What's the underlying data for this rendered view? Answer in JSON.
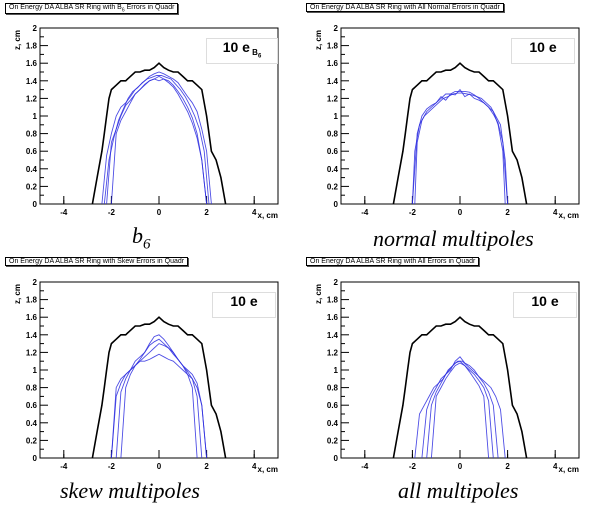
{
  "charts": [
    {
      "title": "On Energy DA ALBA SR Ring with B",
      "title_sub": "6",
      "title_rest": " Errors in Quadr",
      "box_label": "10 e",
      "box_sub": "B",
      "box_sub2": "6",
      "caption_main": "b",
      "caption_sub": "6",
      "caption": ""
    },
    {
      "title": "On Energy DA ALBA SR Ring with All Normal Errors in Quadr",
      "box_label": "10 e",
      "caption": "normal multipoles"
    },
    {
      "title": "On Energy DA ALBA SR Ring with Skew Errors in Quadr",
      "box_label": "10 e",
      "caption": "skew multipoles"
    },
    {
      "title": "On Energy DA ALBA SR Ring with All Errors in Quadr",
      "box_label": "10 e",
      "caption": "all multipoles"
    }
  ],
  "axes": {
    "xlabel": "x, cm",
    "ylabel": "z, cm",
    "xlim": [
      -5,
      5
    ],
    "ylim": [
      0,
      2
    ],
    "xticks": [
      "-4",
      "-2",
      "0",
      "2",
      "4"
    ],
    "yticks": [
      "0",
      "0.2",
      "0.4",
      "0.6",
      "0.8",
      "1",
      "1.2",
      "1.4",
      "1.6",
      "1.8",
      "2"
    ]
  },
  "colors": {
    "reference": "#000000",
    "errors": "#2e2ee0",
    "title_frame": "#000000"
  },
  "chart_data": [
    {
      "type": "line",
      "title": "On Energy DA ALBA SR Ring with B6 Errors in Quadr",
      "xlabel": "x, cm",
      "ylabel": "z, cm",
      "xlim": [
        -5,
        5
      ],
      "ylim": [
        0,
        2
      ],
      "series": [
        {
          "role": "reference",
          "x": [
            -2.8,
            -2.6,
            -2.4,
            -2.3,
            -2.2,
            -2.1,
            -2.0,
            -1.8,
            -1.6,
            -1.4,
            -1.2,
            -1.0,
            -0.8,
            -0.6,
            -0.4,
            -0.2,
            0.0,
            0.2,
            0.4,
            0.6,
            0.8,
            1.0,
            1.2,
            1.4,
            1.6,
            1.8,
            2.0,
            2.2,
            2.4,
            2.6,
            2.8
          ],
          "y": [
            0.0,
            0.3,
            0.6,
            0.8,
            1.0,
            1.2,
            1.3,
            1.35,
            1.4,
            1.4,
            1.45,
            1.5,
            1.5,
            1.52,
            1.52,
            1.55,
            1.6,
            1.55,
            1.52,
            1.5,
            1.5,
            1.45,
            1.4,
            1.4,
            1.35,
            1.3,
            1.0,
            0.6,
            0.5,
            0.3,
            0.0
          ]
        },
        {
          "role": "error",
          "x": [
            -2.4,
            -2.2,
            -2.0,
            -1.8,
            -1.6,
            -1.4,
            -1.2,
            -1.0,
            -0.8,
            -0.6,
            -0.4,
            -0.2,
            0.0,
            0.2,
            0.4,
            0.6,
            0.8,
            1.0,
            1.2,
            1.4,
            1.6,
            1.8,
            2.0,
            2.2
          ],
          "y": [
            0.0,
            0.55,
            0.8,
            1.0,
            1.1,
            1.15,
            1.22,
            1.3,
            1.35,
            1.4,
            1.45,
            1.48,
            1.5,
            1.48,
            1.45,
            1.42,
            1.38,
            1.3,
            1.22,
            1.15,
            1.05,
            0.85,
            0.6,
            0.0
          ]
        },
        {
          "role": "error",
          "x": [
            -2.3,
            -2.1,
            -1.9,
            -1.7,
            -1.5,
            -1.3,
            -1.1,
            -0.9,
            -0.7,
            -0.5,
            -0.3,
            -0.1,
            0.1,
            0.3,
            0.5,
            0.7,
            0.9,
            1.1,
            1.3,
            1.5,
            1.7,
            1.9,
            2.1
          ],
          "y": [
            0.0,
            0.5,
            0.75,
            0.95,
            1.08,
            1.2,
            1.28,
            1.32,
            1.38,
            1.42,
            1.44,
            1.46,
            1.46,
            1.44,
            1.42,
            1.36,
            1.3,
            1.22,
            1.12,
            1.0,
            0.85,
            0.6,
            0.0
          ]
        },
        {
          "role": "error",
          "x": [
            -2.2,
            -2.0,
            -1.8,
            -1.6,
            -1.4,
            -1.2,
            -1.0,
            -0.8,
            -0.6,
            -0.4,
            -0.2,
            0.0,
            0.2,
            0.4,
            0.6,
            0.8,
            1.0,
            1.2,
            1.4,
            1.6,
            1.8,
            2.0
          ],
          "y": [
            0.0,
            0.7,
            0.85,
            1.0,
            1.12,
            1.18,
            1.25,
            1.3,
            1.36,
            1.4,
            1.42,
            1.45,
            1.42,
            1.4,
            1.35,
            1.28,
            1.2,
            1.1,
            0.98,
            0.8,
            0.5,
            0.0
          ]
        },
        {
          "role": "error",
          "x": [
            -2.0,
            -1.8,
            -1.6,
            -1.4,
            -1.2,
            -1.0,
            -0.8,
            -0.6,
            -0.4,
            -0.2,
            0.0,
            0.2,
            0.4,
            0.6,
            0.8,
            1.0,
            1.2,
            1.4,
            1.6,
            1.8,
            2.0
          ],
          "y": [
            0.0,
            0.8,
            0.95,
            1.05,
            1.15,
            1.25,
            1.3,
            1.35,
            1.4,
            1.42,
            1.4,
            1.42,
            1.38,
            1.33,
            1.25,
            1.15,
            1.05,
            0.92,
            0.75,
            0.5,
            0.0
          ]
        }
      ]
    },
    {
      "type": "line",
      "title": "On Energy DA ALBA SR Ring with All Normal Errors in Quadr",
      "xlabel": "x, cm",
      "ylabel": "z, cm",
      "xlim": [
        -5,
        5
      ],
      "ylim": [
        0,
        2
      ],
      "series": [
        {
          "role": "reference",
          "x": [
            -2.8,
            -2.6,
            -2.4,
            -2.3,
            -2.2,
            -2.1,
            -2.0,
            -1.8,
            -1.6,
            -1.4,
            -1.2,
            -1.0,
            -0.8,
            -0.6,
            -0.4,
            -0.2,
            0.0,
            0.2,
            0.4,
            0.6,
            0.8,
            1.0,
            1.2,
            1.4,
            1.6,
            1.8,
            2.0,
            2.2,
            2.4,
            2.6,
            2.8
          ],
          "y": [
            0.0,
            0.3,
            0.6,
            0.8,
            1.0,
            1.2,
            1.3,
            1.35,
            1.4,
            1.4,
            1.45,
            1.5,
            1.5,
            1.52,
            1.52,
            1.55,
            1.6,
            1.55,
            1.52,
            1.5,
            1.5,
            1.45,
            1.4,
            1.4,
            1.35,
            1.3,
            1.0,
            0.6,
            0.5,
            0.3,
            0.0
          ]
        },
        {
          "role": "error",
          "x": [
            -2.0,
            -1.9,
            -1.7,
            -1.5,
            -1.3,
            -1.1,
            -0.9,
            -0.7,
            -0.5,
            -0.3,
            -0.1,
            0.1,
            0.3,
            0.5,
            0.7,
            0.9,
            1.1,
            1.3,
            1.5,
            1.7,
            1.9,
            2.0
          ],
          "y": [
            0.0,
            0.6,
            0.9,
            1.0,
            1.05,
            1.1,
            1.15,
            1.2,
            1.22,
            1.25,
            1.26,
            1.26,
            1.25,
            1.24,
            1.22,
            1.2,
            1.15,
            1.1,
            1.0,
            0.9,
            0.5,
            0.0
          ]
        },
        {
          "role": "error",
          "x": [
            -1.9,
            -1.8,
            -1.6,
            -1.4,
            -1.2,
            -1.0,
            -0.8,
            -0.6,
            -0.4,
            -0.2,
            0.0,
            0.2,
            0.4,
            0.6,
            0.8,
            1.0,
            1.2,
            1.4,
            1.6,
            1.8,
            1.9
          ],
          "y": [
            0.0,
            0.7,
            0.95,
            1.05,
            1.1,
            1.15,
            1.2,
            1.25,
            1.25,
            1.28,
            1.28,
            1.28,
            1.27,
            1.24,
            1.2,
            1.15,
            1.1,
            1.05,
            0.9,
            0.6,
            0.0
          ]
        },
        {
          "role": "error",
          "x": [
            -2.0,
            -1.8,
            -1.6,
            -1.4,
            -1.2,
            -1.0,
            -0.8,
            -0.6,
            -0.4,
            -0.2,
            0.0,
            0.2,
            0.4,
            0.6,
            0.8,
            1.0,
            1.2,
            1.4,
            1.6,
            1.8,
            2.0
          ],
          "y": [
            0.0,
            0.8,
            1.0,
            1.08,
            1.12,
            1.15,
            1.22,
            1.18,
            1.25,
            1.24,
            1.3,
            1.22,
            1.25,
            1.2,
            1.18,
            1.15,
            1.1,
            1.02,
            0.92,
            0.7,
            0.0
          ]
        }
      ]
    },
    {
      "type": "line",
      "title": "On Energy DA ALBA SR Ring with Skew Errors in Quadr",
      "xlabel": "x, cm",
      "ylabel": "z, cm",
      "xlim": [
        -5,
        5
      ],
      "ylim": [
        0,
        2
      ],
      "series": [
        {
          "role": "reference",
          "x": [
            -2.8,
            -2.6,
            -2.4,
            -2.3,
            -2.2,
            -2.1,
            -2.0,
            -1.8,
            -1.6,
            -1.4,
            -1.2,
            -1.0,
            -0.8,
            -0.6,
            -0.4,
            -0.2,
            0.0,
            0.2,
            0.4,
            0.6,
            0.8,
            1.0,
            1.2,
            1.4,
            1.6,
            1.8,
            2.0,
            2.2,
            2.4,
            2.6,
            2.8
          ],
          "y": [
            0.0,
            0.3,
            0.6,
            0.8,
            1.0,
            1.2,
            1.3,
            1.35,
            1.4,
            1.4,
            1.45,
            1.5,
            1.5,
            1.52,
            1.52,
            1.55,
            1.6,
            1.55,
            1.52,
            1.5,
            1.5,
            1.45,
            1.4,
            1.4,
            1.35,
            1.3,
            1.0,
            0.6,
            0.5,
            0.3,
            0.0
          ]
        },
        {
          "role": "error",
          "x": [
            -2.0,
            -1.8,
            -1.6,
            -1.4,
            -1.2,
            -1.0,
            -0.8,
            -0.6,
            -0.4,
            -0.2,
            0.0,
            0.2,
            0.4,
            0.6,
            0.8,
            1.0,
            1.2,
            1.4,
            1.6,
            1.8,
            2.0
          ],
          "y": [
            0.0,
            0.7,
            0.85,
            0.95,
            1.0,
            1.05,
            1.1,
            1.15,
            1.2,
            1.25,
            1.3,
            1.28,
            1.25,
            1.2,
            1.12,
            1.05,
            1.0,
            0.95,
            0.85,
            0.6,
            0.0
          ]
        },
        {
          "role": "error",
          "x": [
            -1.8,
            -1.6,
            -1.4,
            -1.2,
            -1.0,
            -0.8,
            -0.6,
            -0.4,
            -0.2,
            0.0,
            0.2,
            0.4,
            0.6,
            0.8,
            1.0,
            1.2,
            1.4,
            1.6,
            1.8
          ],
          "y": [
            0.0,
            0.75,
            0.9,
            1.0,
            1.1,
            1.15,
            1.2,
            1.28,
            1.32,
            1.35,
            1.3,
            1.25,
            1.18,
            1.12,
            1.05,
            0.98,
            0.9,
            0.7,
            0.0
          ]
        },
        {
          "role": "error",
          "x": [
            -1.6,
            -1.4,
            -1.2,
            -1.0,
            -0.8,
            -0.6,
            -0.4,
            -0.2,
            0.0,
            0.2,
            0.4,
            0.6,
            0.8,
            1.0,
            1.2,
            1.4,
            1.6
          ],
          "y": [
            0.0,
            0.8,
            0.95,
            1.05,
            1.12,
            1.2,
            1.3,
            1.38,
            1.4,
            1.35,
            1.28,
            1.2,
            1.12,
            1.05,
            0.95,
            0.8,
            0.0
          ]
        },
        {
          "role": "error",
          "x": [
            -2.0,
            -1.8,
            -1.6,
            -1.4,
            -1.2,
            -1.0,
            -0.8,
            -0.6,
            -0.4,
            -0.2,
            0.0,
            0.2,
            0.4,
            0.6,
            0.8,
            1.0,
            1.2,
            1.4,
            1.6,
            1.8,
            2.0
          ],
          "y": [
            0.0,
            0.8,
            0.9,
            0.95,
            1.0,
            1.05,
            1.1,
            1.1,
            1.12,
            1.15,
            1.18,
            1.15,
            1.12,
            1.1,
            1.05,
            1.0,
            0.95,
            0.9,
            0.8,
            0.6,
            0.0
          ]
        }
      ]
    },
    {
      "type": "line",
      "title": "On Energy DA ALBA SR Ring with All Errors in Quadr",
      "xlabel": "x, cm",
      "ylabel": "z, cm",
      "xlim": [
        -5,
        5
      ],
      "ylim": [
        0,
        2
      ],
      "series": [
        {
          "role": "reference",
          "x": [
            -2.8,
            -2.6,
            -2.4,
            -2.3,
            -2.2,
            -2.1,
            -2.0,
            -1.8,
            -1.6,
            -1.4,
            -1.2,
            -1.0,
            -0.8,
            -0.6,
            -0.4,
            -0.2,
            0.0,
            0.2,
            0.4,
            0.6,
            0.8,
            1.0,
            1.2,
            1.4,
            1.6,
            1.8,
            2.0,
            2.2,
            2.4,
            2.6,
            2.8
          ],
          "y": [
            0.0,
            0.3,
            0.6,
            0.8,
            1.0,
            1.2,
            1.3,
            1.35,
            1.4,
            1.4,
            1.45,
            1.5,
            1.5,
            1.52,
            1.52,
            1.55,
            1.6,
            1.55,
            1.52,
            1.5,
            1.5,
            1.45,
            1.4,
            1.4,
            1.35,
            1.3,
            1.0,
            0.6,
            0.5,
            0.3,
            0.0
          ]
        },
        {
          "role": "error",
          "x": [
            -1.9,
            -1.7,
            -1.5,
            -1.3,
            -1.1,
            -0.9,
            -0.7,
            -0.5,
            -0.3,
            -0.1,
            0.1,
            0.3,
            0.5,
            0.7,
            0.9,
            1.1,
            1.3,
            1.5,
            1.7,
            1.9
          ],
          "y": [
            0.0,
            0.5,
            0.6,
            0.7,
            0.8,
            0.85,
            0.9,
            1.0,
            1.05,
            1.1,
            1.1,
            1.05,
            1.0,
            0.95,
            0.9,
            0.85,
            0.8,
            0.7,
            0.55,
            0.0
          ]
        },
        {
          "role": "error",
          "x": [
            -1.6,
            -1.4,
            -1.2,
            -1.0,
            -0.8,
            -0.6,
            -0.4,
            -0.2,
            0.0,
            0.2,
            0.4,
            0.6,
            0.8,
            1.0,
            1.2,
            1.4,
            1.6
          ],
          "y": [
            0.0,
            0.55,
            0.7,
            0.8,
            0.9,
            0.95,
            1.0,
            1.1,
            1.15,
            1.08,
            1.05,
            1.0,
            0.92,
            0.85,
            0.75,
            0.6,
            0.0
          ]
        },
        {
          "role": "error",
          "x": [
            -1.4,
            -1.2,
            -1.0,
            -0.8,
            -0.6,
            -0.4,
            -0.2,
            0.0,
            0.2,
            0.4,
            0.6,
            0.8,
            1.0,
            1.2,
            1.4
          ],
          "y": [
            0.0,
            0.6,
            0.75,
            0.85,
            0.95,
            1.02,
            1.08,
            1.1,
            1.05,
            1.0,
            0.95,
            0.88,
            0.8,
            0.65,
            0.0
          ]
        },
        {
          "role": "error",
          "x": [
            -1.2,
            -1.0,
            -0.8,
            -0.6,
            -0.4,
            -0.2,
            0.0,
            0.2,
            0.4,
            0.6,
            0.8,
            1.0,
            1.2
          ],
          "y": [
            0.0,
            0.7,
            0.8,
            0.9,
            0.98,
            1.05,
            1.08,
            1.05,
            0.98,
            0.9,
            0.82,
            0.7,
            0.0
          ]
        }
      ]
    }
  ]
}
